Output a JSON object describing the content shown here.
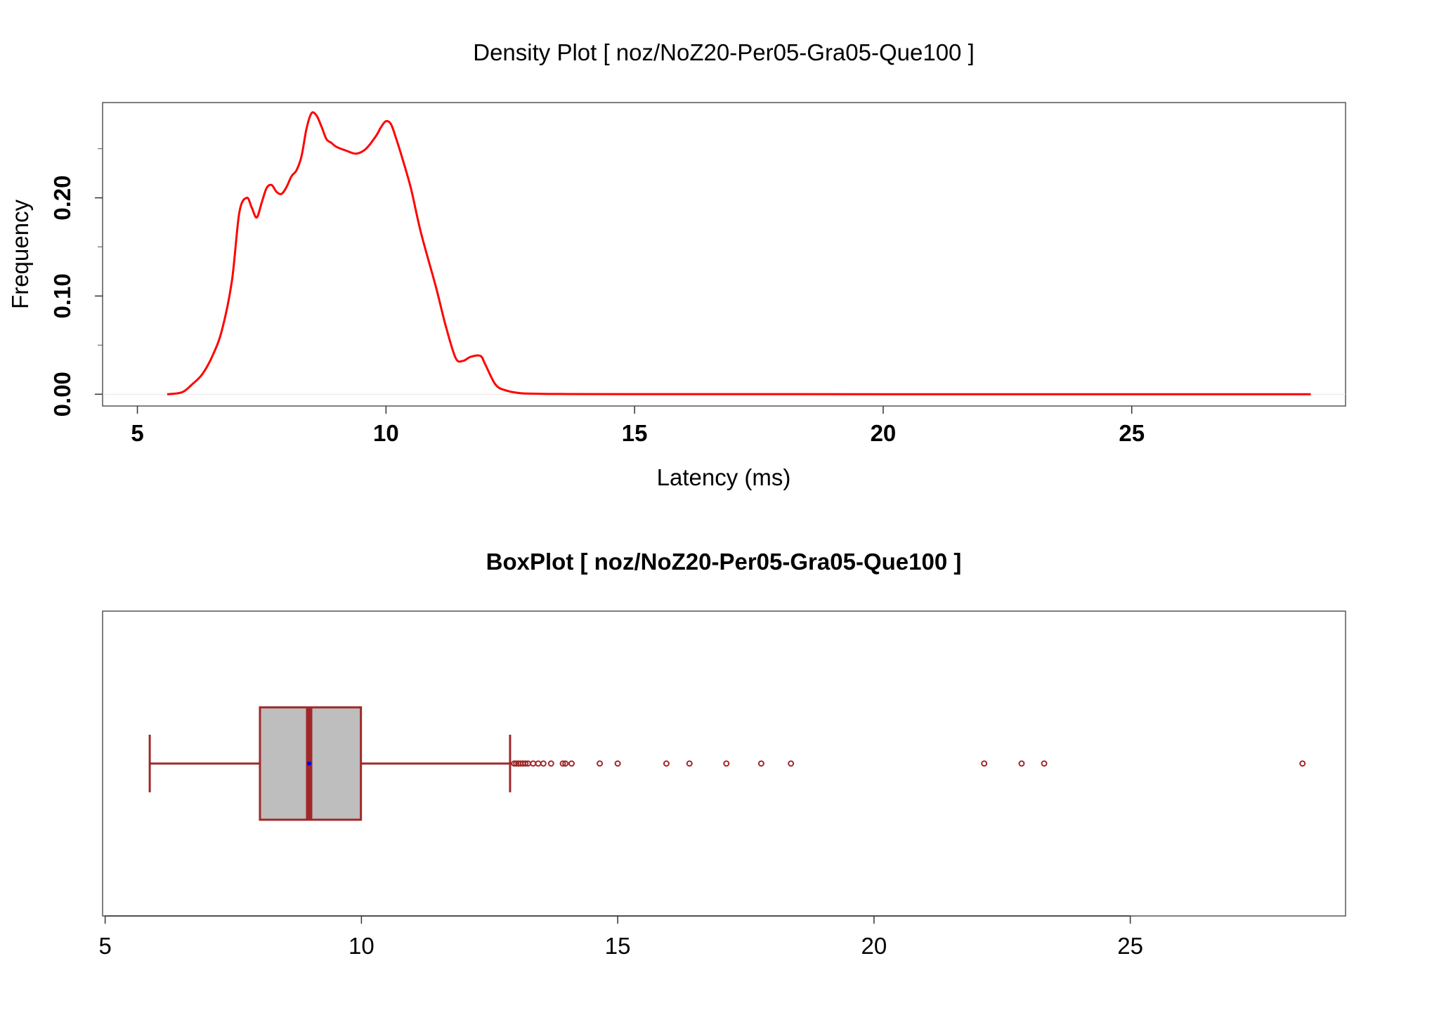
{
  "colors": {
    "density_line": "#ff0000",
    "box_stroke": "#a0282a",
    "box_fill": "#bebebe",
    "mean_marker": "#0000ff",
    "frame": "#555555",
    "zero_line": "#e6e6e6"
  },
  "chart_data": [
    {
      "type": "line",
      "title": "Density Plot [ noz/NoZ20-Per05-Gra05-Que100 ]",
      "xlabel": "Latency (ms)",
      "ylabel": "Frequency",
      "xlim": [
        4.3,
        29.3
      ],
      "ylim": [
        -0.012,
        0.297
      ],
      "x_ticks": [
        "5",
        "10",
        "15",
        "20",
        "25"
      ],
      "x_tick_values": [
        5,
        10,
        15,
        20,
        25
      ],
      "y_ticks": [
        "0.00",
        "0.10",
        "0.20"
      ],
      "y_tick_values": [
        0.0,
        0.1,
        0.2
      ],
      "y_minor_tick_values": [
        0.05,
        0.15,
        0.25
      ],
      "grid": false,
      "series": [
        {
          "x": [
            5.6,
            5.9,
            6.1,
            6.3,
            6.5,
            6.7,
            6.9,
            7.05,
            7.2,
            7.3,
            7.4,
            7.5,
            7.6,
            7.7,
            7.8,
            7.9,
            8.0,
            8.1,
            8.2,
            8.3,
            8.4,
            8.5,
            8.6,
            8.7,
            8.8,
            8.9,
            9.0,
            9.2,
            9.4,
            9.6,
            9.8,
            9.9,
            10.0,
            10.1,
            10.2,
            10.3,
            10.5,
            10.7,
            11.0,
            11.2,
            11.4,
            11.55,
            11.7,
            11.9,
            12.0,
            12.2,
            12.4,
            12.7,
            13.0,
            13.5,
            15.0,
            20.0,
            25.0,
            28.6
          ],
          "y": [
            0.0,
            0.002,
            0.01,
            0.02,
            0.038,
            0.065,
            0.115,
            0.185,
            0.2,
            0.19,
            0.18,
            0.195,
            0.21,
            0.213,
            0.206,
            0.204,
            0.211,
            0.222,
            0.228,
            0.242,
            0.27,
            0.286,
            0.284,
            0.273,
            0.26,
            0.256,
            0.252,
            0.248,
            0.245,
            0.25,
            0.263,
            0.272,
            0.278,
            0.275,
            0.261,
            0.245,
            0.21,
            0.165,
            0.11,
            0.07,
            0.037,
            0.034,
            0.038,
            0.039,
            0.03,
            0.01,
            0.004,
            0.001,
            0.0005,
            0.0002,
            0.0001,
            0.0,
            0.0,
            0.0
          ]
        }
      ]
    },
    {
      "type": "box",
      "title": "BoxPlot [ noz/NoZ20-Per05-Gra05-Que100 ]",
      "xlim": [
        4.95,
        29.2
      ],
      "x_ticks": [
        "5",
        "10",
        "15",
        "20",
        "25"
      ],
      "x_tick_values": [
        5,
        10,
        15,
        20,
        25
      ],
      "whisker_low": 5.87,
      "q1": 8.02,
      "median": 8.98,
      "mean": 8.98,
      "q3": 9.99,
      "whisker_high": 12.9,
      "outliers": [
        12.98,
        13.02,
        13.06,
        13.1,
        13.15,
        13.2,
        13.25,
        13.35,
        13.45,
        13.55,
        13.7,
        13.93,
        13.98,
        14.1,
        14.65,
        15.0,
        15.95,
        16.4,
        17.12,
        17.8,
        18.38,
        22.15,
        22.88,
        23.32,
        28.36
      ]
    }
  ]
}
